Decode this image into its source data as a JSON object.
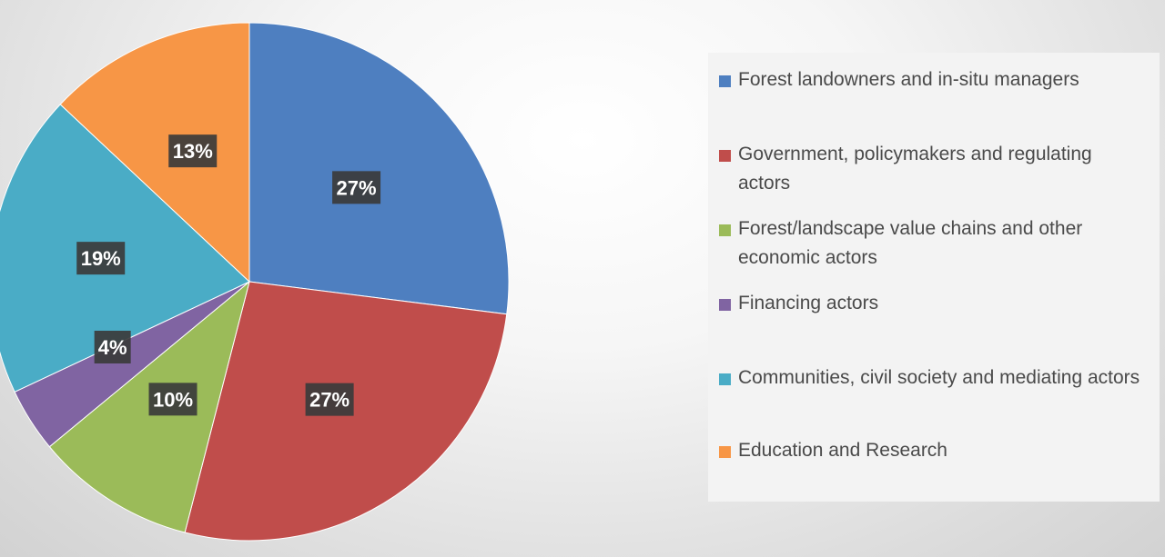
{
  "chart_data": {
    "type": "pie",
    "title": "",
    "start_angle_deg": 0,
    "direction": "clockwise",
    "legend_position": "right",
    "slices": [
      {
        "label": "Forest landowners and in-situ managers",
        "value": 27,
        "display": "27%",
        "color": "#4e7fc0"
      },
      {
        "label": "Government, policymakers and regulating actors",
        "value": 27,
        "display": "27%",
        "color": "#c04d4b"
      },
      {
        "label": "Forest/landscape value chains and other economic actors",
        "value": 10,
        "display": "10%",
        "color": "#9bbb59"
      },
      {
        "label": "Financing actors",
        "value": 4,
        "display": "4%",
        "color": "#8064a2"
      },
      {
        "label": "Communities, civil society and mediating actors",
        "value": 19,
        "display": "19%",
        "color": "#4aacc6"
      },
      {
        "label": "Education and Research",
        "value": 13,
        "display": "13%",
        "color": "#f79646"
      }
    ]
  }
}
